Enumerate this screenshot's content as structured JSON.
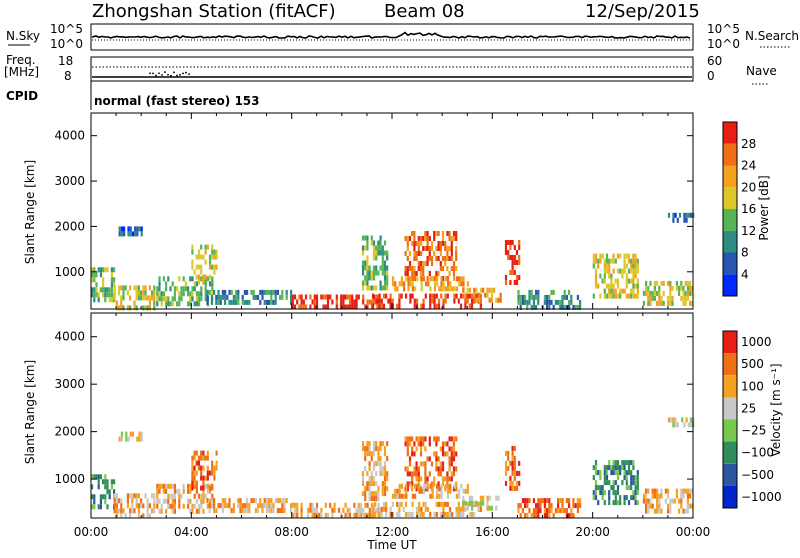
{
  "header": {
    "title": "Zhongshan Station (fitACF)",
    "beam": "Beam 08",
    "date": "12/Sep/2015"
  },
  "status_panels": {
    "nsky_label": "N.Sky",
    "nsky_ticks": [
      "10^5",
      "10^0"
    ],
    "nsearch_label": "N.Search",
    "nsearch_ticks": [
      "10^5",
      "10^0"
    ],
    "freq_label": [
      "Freq.",
      "[MHz]"
    ],
    "freq_ticks": [
      "18",
      "8"
    ],
    "nave_label": "Nave",
    "nave_ticks": [
      "60",
      "0"
    ],
    "cpid_label": "CPID",
    "cpid_text": "normal (fast stereo) 153"
  },
  "chart_data": [
    {
      "type": "heatmap",
      "name": "power",
      "ylabel": "Slant Range [km]",
      "xlabel": "",
      "x_ticks": [
        "00:00",
        "04:00",
        "08:00",
        "12:00",
        "16:00",
        "20:00",
        "00:00"
      ],
      "y_ticks": [
        "1000",
        "2000",
        "3000",
        "4000"
      ],
      "xlim_hours": [
        0,
        24
      ],
      "ylim_km": [
        180,
        4500
      ],
      "colorbar": {
        "label": "Power [dB]",
        "ticks": [
          "4",
          "8",
          "12",
          "16",
          "20",
          "24",
          "28"
        ],
        "colors": [
          "#0028ff",
          "#2a55b0",
          "#2e8d82",
          "#55b455",
          "#dcc828",
          "#f5a01e",
          "#f06e14",
          "#e61e14"
        ]
      },
      "regions": [
        {
          "t": [
            0.0,
            0.9
          ],
          "r": [
            400,
            1100
          ],
          "level": 3
        },
        {
          "t": [
            0.9,
            2.5
          ],
          "r": [
            250,
            700
          ],
          "level": 4
        },
        {
          "t": [
            1.1,
            2.0
          ],
          "r": [
            1800,
            2000
          ],
          "level": 1
        },
        {
          "t": [
            2.6,
            4.8
          ],
          "r": [
            300,
            900
          ],
          "level": 3
        },
        {
          "t": [
            4.0,
            5.0
          ],
          "r": [
            800,
            1600
          ],
          "level": 4
        },
        {
          "t": [
            4.6,
            8.0
          ],
          "r": [
            300,
            600
          ],
          "level": 2
        },
        {
          "t": [
            8.0,
            11.5
          ],
          "r": [
            220,
            500
          ],
          "level": 7
        },
        {
          "t": [
            11.2,
            15.5
          ],
          "r": [
            220,
            520
          ],
          "level": 7
        },
        {
          "t": [
            10.8,
            11.8
          ],
          "r": [
            600,
            1800
          ],
          "level": 3
        },
        {
          "t": [
            12.5,
            14.6
          ],
          "r": [
            800,
            1900
          ],
          "level": 6
        },
        {
          "t": [
            12.0,
            15.0
          ],
          "r": [
            600,
            900
          ],
          "level": 5
        },
        {
          "t": [
            14.8,
            16.3
          ],
          "r": [
            350,
            650
          ],
          "level": 5
        },
        {
          "t": [
            16.5,
            17.1
          ],
          "r": [
            800,
            1700
          ],
          "level": 7
        },
        {
          "t": [
            17.0,
            19.5
          ],
          "r": [
            250,
            600
          ],
          "level": 2
        },
        {
          "t": [
            20.0,
            21.8
          ],
          "r": [
            500,
            1400
          ],
          "level": 4
        },
        {
          "t": [
            22.0,
            24.0
          ],
          "r": [
            300,
            800
          ],
          "level": 4
        },
        {
          "t": [
            23.0,
            24.0
          ],
          "r": [
            2100,
            2300
          ],
          "level": 1
        }
      ]
    },
    {
      "type": "heatmap",
      "name": "velocity",
      "ylabel": "Slant Range [km]",
      "xlabel": "Time UT",
      "x_ticks": [
        "00:00",
        "04:00",
        "08:00",
        "12:00",
        "16:00",
        "20:00",
        "00:00"
      ],
      "y_ticks": [
        "1000",
        "2000",
        "3000",
        "4000"
      ],
      "xlim_hours": [
        0,
        24
      ],
      "ylim_km": [
        180,
        4500
      ],
      "colorbar": {
        "label": "Velocity [m s⁻¹]",
        "ticks": [
          "1000",
          "500",
          "100",
          "25",
          "−25",
          "−100",
          "−500",
          "−1000"
        ],
        "colors": [
          "#0028c8",
          "#2d55a0",
          "#2e8d5a",
          "#78c850",
          "#c8c8c8",
          "#f5a01e",
          "#f06e14",
          "#e61e14"
        ]
      },
      "regions": [
        {
          "t": [
            0.0,
            0.9
          ],
          "r": [
            400,
            1100
          ],
          "level": 2
        },
        {
          "t": [
            0.9,
            2.5
          ],
          "r": [
            250,
            700
          ],
          "level": 5
        },
        {
          "t": [
            1.1,
            2.0
          ],
          "r": [
            1800,
            2000
          ],
          "level": 4
        },
        {
          "t": [
            2.6,
            4.8
          ],
          "r": [
            300,
            900
          ],
          "level": 5
        },
        {
          "t": [
            4.0,
            5.0
          ],
          "r": [
            800,
            1600
          ],
          "level": 6
        },
        {
          "t": [
            4.6,
            8.0
          ],
          "r": [
            300,
            600
          ],
          "level": 5
        },
        {
          "t": [
            8.0,
            11.5
          ],
          "r": [
            220,
            500
          ],
          "level": 5
        },
        {
          "t": [
            11.2,
            15.5
          ],
          "r": [
            220,
            520
          ],
          "level": 5
        },
        {
          "t": [
            10.8,
            11.8
          ],
          "r": [
            600,
            1800
          ],
          "level": 5
        },
        {
          "t": [
            12.5,
            14.6
          ],
          "r": [
            800,
            1900
          ],
          "level": 6
        },
        {
          "t": [
            12.0,
            15.0
          ],
          "r": [
            600,
            900
          ],
          "level": 5
        },
        {
          "t": [
            14.8,
            16.3
          ],
          "r": [
            350,
            650
          ],
          "level": 4
        },
        {
          "t": [
            16.5,
            17.1
          ],
          "r": [
            800,
            1700
          ],
          "level": 6
        },
        {
          "t": [
            17.0,
            19.5
          ],
          "r": [
            250,
            600
          ],
          "level": 6
        },
        {
          "t": [
            20.0,
            21.8
          ],
          "r": [
            500,
            1400
          ],
          "level": 2
        },
        {
          "t": [
            22.0,
            24.0
          ],
          "r": [
            300,
            800
          ],
          "level": 5
        },
        {
          "t": [
            23.0,
            24.0
          ],
          "r": [
            2100,
            2300
          ],
          "level": 4
        }
      ]
    }
  ]
}
